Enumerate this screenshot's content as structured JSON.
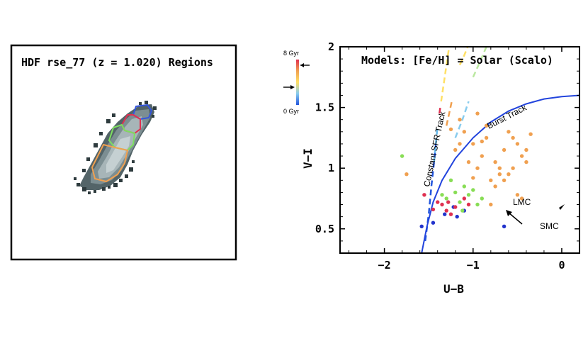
{
  "left_panel": {
    "title": "HDF rse_77  (z = 1.020) Regions",
    "region_colors": [
      "#3355dd",
      "#e03050",
      "#7ddf60",
      "#f0a050"
    ]
  },
  "colorbar": {
    "top_label": "8 Gyr",
    "bottom_label": "0 Gyr",
    "colors": [
      "#e03050",
      "#f0a050",
      "#ffe066",
      "#88ccee",
      "#2255dd"
    ]
  },
  "chart_data": {
    "type": "scatter",
    "title": "Models: [Fe/H] = Solar (Scalo)",
    "xlabel": "U−B",
    "ylabel": "V−I",
    "xlim": [
      -2.5,
      0.2
    ],
    "ylim": [
      0.3,
      2.0
    ],
    "xticks": [
      -2,
      -1,
      0
    ],
    "xtick_labels": [
      "−2",
      "−1",
      "0"
    ],
    "yticks": [
      0.5,
      1,
      1.5,
      2
    ],
    "ytick_labels": [
      "0.5",
      "1",
      "1.5",
      "2"
    ],
    "annotations": {
      "burst_track": "Burst Track",
      "constant_sfr": "Constant SFR Track",
      "lmc": "LMC",
      "smc": "SMC"
    },
    "burst_track": {
      "color": "#2244dd",
      "x": [
        -1.58,
        -1.52,
        -1.45,
        -1.35,
        -1.2,
        -1.0,
        -0.8,
        -0.6,
        -0.4,
        -0.2,
        0.0,
        0.2
      ],
      "y": [
        0.3,
        0.52,
        0.72,
        0.9,
        1.08,
        1.25,
        1.38,
        1.47,
        1.53,
        1.57,
        1.59,
        1.6
      ]
    },
    "model_tracks": [
      {
        "color": "#2255dd",
        "x": [
          -1.54,
          -1.5,
          -1.47,
          -1.44,
          -1.42
        ],
        "y": [
          0.4,
          0.62,
          0.85,
          1.05,
          1.2
        ]
      },
      {
        "color": "#66bbee",
        "x": [
          -1.44,
          -1.42,
          -1.4
        ],
        "y": [
          1.05,
          1.2,
          1.35
        ]
      },
      {
        "color": "#ffe066",
        "x": [
          -1.36,
          -1.33,
          -1.3,
          -1.27
        ],
        "y": [
          1.55,
          1.7,
          1.85,
          2.0
        ]
      },
      {
        "color": "#f0a050",
        "x": [
          -1.3,
          -1.27,
          -1.24
        ],
        "y": [
          1.35,
          1.45,
          1.55
        ]
      },
      {
        "color": "#e03050",
        "x": [
          -1.38,
          -1.37
        ],
        "y": [
          1.45,
          1.5
        ]
      },
      {
        "color": "#88ccee",
        "x": [
          -1.2,
          -1.12,
          -1.05
        ],
        "y": [
          1.25,
          1.4,
          1.55
        ]
      },
      {
        "color": "#bbe8a0",
        "x": [
          -1.0,
          -0.92,
          -0.85
        ],
        "y": [
          1.75,
          1.88,
          2.0
        ]
      },
      {
        "color": "#ffe066",
        "x": [
          -1.15,
          -1.1,
          -1.06
        ],
        "y": [
          1.85,
          1.93,
          2.0
        ]
      }
    ],
    "series": [
      {
        "name": "blue region",
        "color": "#2233cc",
        "x": [
          -1.58,
          -1.45,
          -1.32,
          -1.22,
          -1.18,
          -1.1,
          -0.65
        ],
        "y": [
          0.52,
          0.55,
          0.62,
          0.68,
          0.6,
          0.65,
          0.52
        ]
      },
      {
        "name": "red region",
        "color": "#e03050",
        "x": [
          -1.55,
          -1.4,
          -1.35,
          -1.3,
          -1.28,
          -1.25,
          -1.2,
          -1.1,
          -1.05,
          -1.45
        ],
        "y": [
          0.78,
          0.72,
          0.7,
          0.65,
          0.72,
          0.62,
          0.68,
          0.75,
          0.7,
          0.66
        ]
      },
      {
        "name": "green region",
        "color": "#88dd55",
        "x": [
          -1.8,
          -1.3,
          -1.2,
          -1.15,
          -1.1,
          -1.05,
          -1.0,
          -0.95,
          -0.9,
          -1.25,
          -1.35,
          -1.12
        ],
        "y": [
          1.1,
          0.75,
          0.8,
          0.72,
          0.85,
          0.78,
          0.82,
          0.7,
          0.75,
          0.9,
          0.78,
          0.65
        ]
      },
      {
        "name": "orange region",
        "color": "#f0a050",
        "x": [
          -1.75,
          -1.2,
          -1.15,
          -1.1,
          -1.05,
          -1.0,
          -0.95,
          -0.9,
          -0.85,
          -0.8,
          -0.75,
          -0.7,
          -0.65,
          -0.6,
          -0.55,
          -0.5,
          -0.45,
          -0.4,
          -0.35,
          -0.95,
          -0.85,
          -0.75,
          -0.65,
          -0.55,
          -0.45,
          -1.25,
          -1.15,
          -0.9,
          -0.7,
          -0.6,
          -0.5,
          -1.0,
          -0.8,
          -0.4
        ],
        "y": [
          0.95,
          1.15,
          1.2,
          1.3,
          1.05,
          1.2,
          1.0,
          1.1,
          1.25,
          0.9,
          1.05,
          0.95,
          1.15,
          1.3,
          1.0,
          1.2,
          1.1,
          1.05,
          1.28,
          1.45,
          1.35,
          0.85,
          0.9,
          1.25,
          0.75,
          1.32,
          1.4,
          1.22,
          1.0,
          0.95,
          0.78,
          0.92,
          0.7,
          1.15
        ]
      }
    ]
  }
}
